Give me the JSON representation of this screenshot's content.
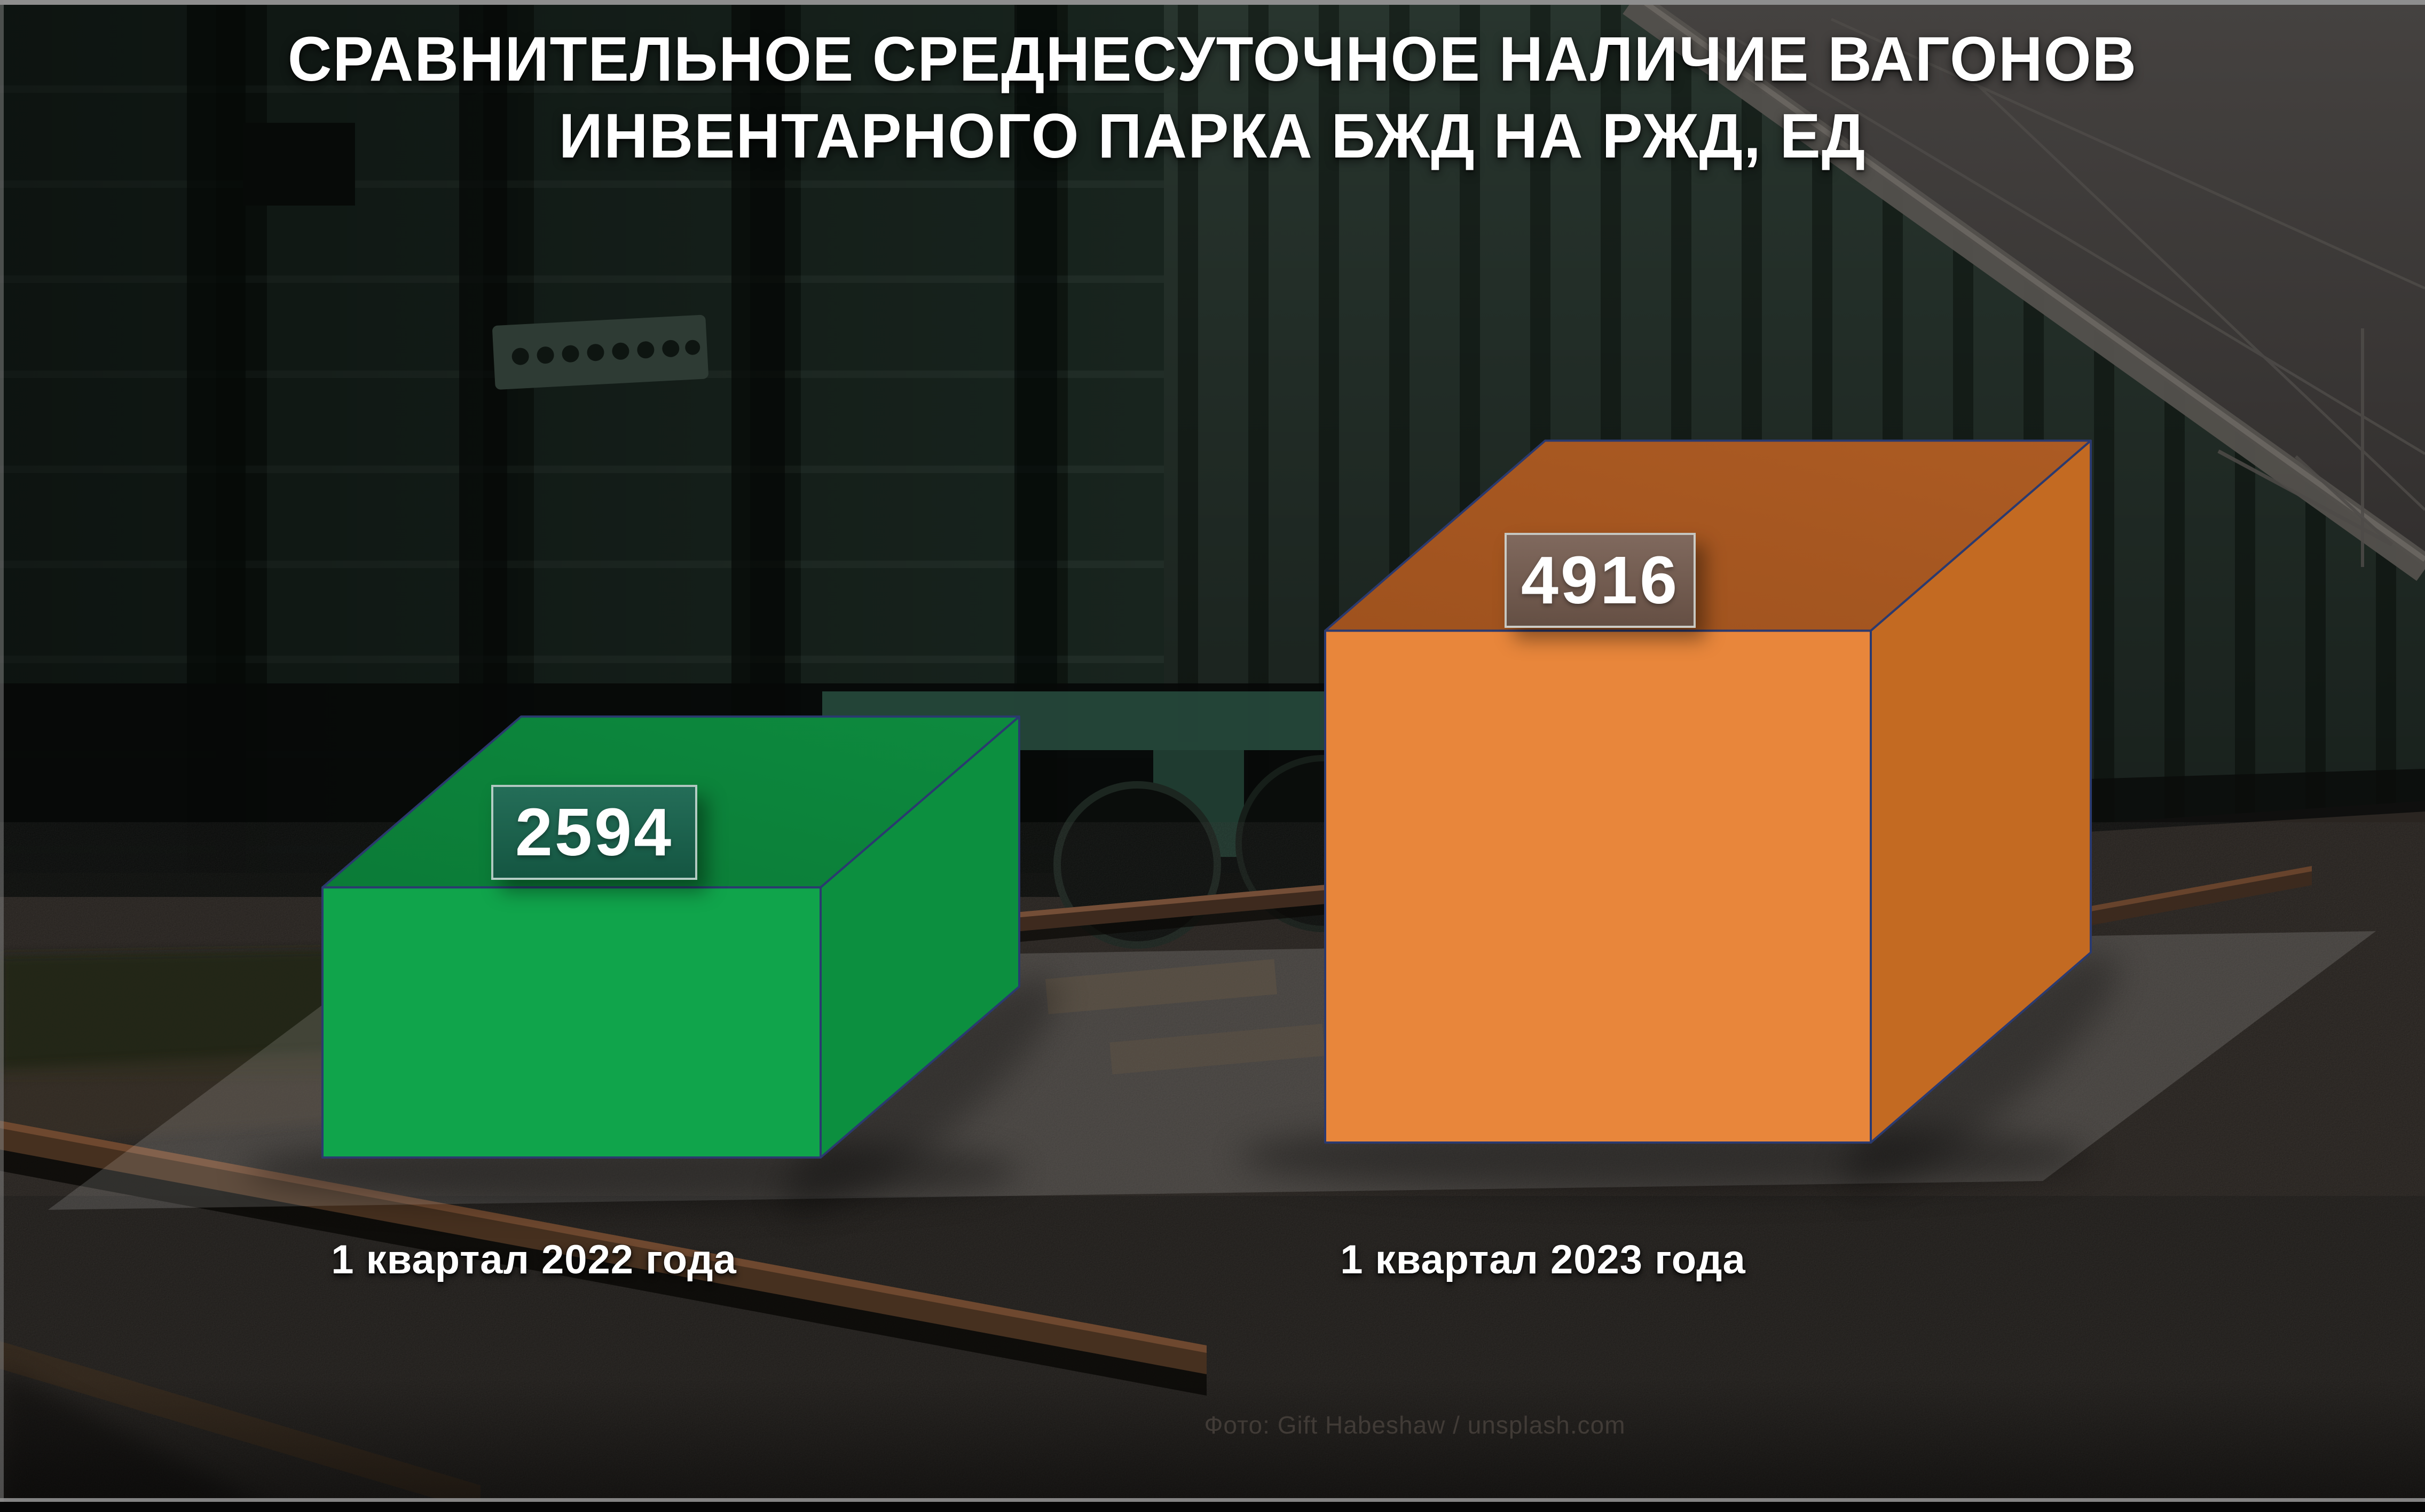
{
  "title": {
    "line1": "СРАВНИТЕЛЬНОЕ СРЕДНЕСУТОЧНОЕ НАЛИЧИЕ ВАГОНОВ",
    "line2": "ИНВЕНТАРНОГО ПАРКА БЖД НА РЖД, ЕД"
  },
  "chart_data": {
    "type": "bar",
    "style": "3d-cuboid-pictogram",
    "title": "СРАВНИТЕЛЬНОЕ СРЕДНЕСУТОЧНОЕ НАЛИЧИЕ ВАГОНОВ ИНВЕНТАРНОГО ПАРКА БЖД НА РЖД, ЕД",
    "categories": [
      "1 квартал 2022 года",
      "1 квартал 2023 года"
    ],
    "values": [
      2594,
      4916
    ],
    "series": [
      {
        "name": "Среднесуточное наличие вагонов инвентарного парка БЖД на РЖД, ед",
        "values": [
          2594,
          4916
        ]
      }
    ],
    "xlabel": "",
    "ylabel": "",
    "legend": "none",
    "grid": false,
    "data_labels": [
      "2594",
      "4916"
    ],
    "bar_colors": [
      "#10A44B",
      "#E8863B"
    ]
  },
  "bars": [
    {
      "value_label": "2594",
      "category_label": "1 квартал 2022 года",
      "face_colors": {
        "front": "#10A44B",
        "side": "#0C8F3F",
        "top": "#0B7B37",
        "top_back": "#0D8A3E"
      },
      "badge_bg": "rgba(27,95,78,0.88)"
    },
    {
      "value_label": "4916",
      "category_label": "1 квартал 2023 года",
      "face_colors": {
        "front": "#E8863B",
        "side": "#C36A22",
        "top": "#9F521E",
        "top_back": "#AC5B23"
      },
      "badge_bg": "rgba(112,93,84,0.92)"
    }
  ],
  "credit": "Фото: Gift Habeshaw / unsplash.com",
  "colors": {
    "edge_line": "#2B3A6F",
    "title_text": "#FFFFFF",
    "caption_text": "#FFFFFF",
    "credit_text": "#453F3A",
    "badge_border": "rgba(230,238,234,0.75)",
    "platform_overlay": "rgba(255,255,255,0.14)",
    "sky": "#413E3C",
    "wagon_wall": "#16211B"
  }
}
